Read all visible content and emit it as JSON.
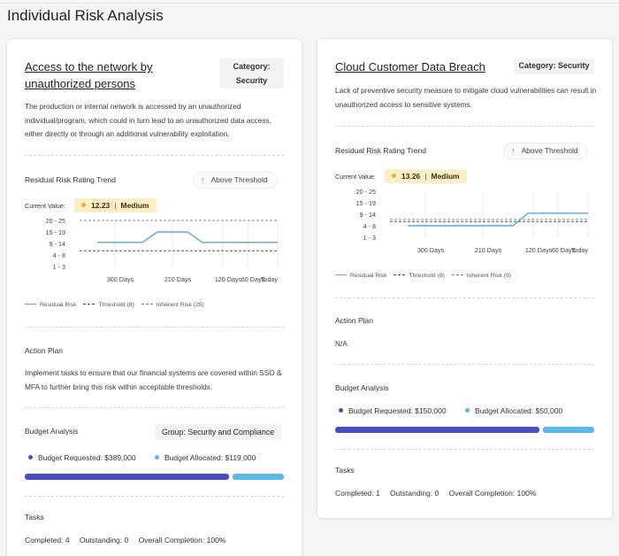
{
  "page": {
    "title": "Individual Risk Analysis"
  },
  "colors": {
    "residual_line": "#5aa7d8",
    "budget_requested": "#4a4fc2",
    "budget_allocated": "#5cb8ea",
    "current_pill": "#fcefc5",
    "threshold_arrow": "#c8553a"
  },
  "cards": [
    {
      "title": "Access to the network by unauthorized persons",
      "category_label": "Category:",
      "category_value": "Security",
      "description": "The production or internal network is accessed by an unauthorized individual/program, which could in turn lead to an unauthorized data access, either directly or through an additional vulnerability exploitation.",
      "trend_label": "Residual Risk Rating Trend",
      "threshold_badge": "Above Threshold",
      "current_label": "Current Value:",
      "current_score": "12.23",
      "current_level": "Medium",
      "chart_data": {
        "type": "line",
        "y_bands": [
          "20 - 25",
          "15 - 19",
          "9 - 14",
          "4 - 8",
          "1 - 3"
        ],
        "x_labels": [
          "300 Days",
          "210 Days",
          "120 Days",
          "60 Days",
          "Today"
        ],
        "residual_values": [
          12,
          12,
          12,
          12,
          17,
          17,
          17,
          12,
          12,
          12,
          12,
          12,
          12
        ],
        "threshold": 8,
        "inherent": 25,
        "legend": [
          "Residual Risk",
          "Threshold (8)",
          "Inherent Risk (25)"
        ]
      },
      "action_plan_label": "Action Plan",
      "action_plan_text": "Implement tasks to ensure that our financial systems are covered within SSO & MFA to further bring this risk within acceptable thresholds.",
      "budget_label": "Budget Analysis",
      "group_badge": "Group: Security and Compliance",
      "budget_requested": "Budget Requested: $389,000",
      "budget_allocated": "Budget Allocated: $119,000",
      "budget_requested_share": 0.8,
      "tasks_label": "Tasks",
      "tasks_completed": "Completed: 4",
      "tasks_outstanding": "Outstanding: 0",
      "tasks_overall": "Overall Completion: 100%"
    },
    {
      "title": "Cloud Customer Data Breach",
      "category_label": "Category:",
      "category_value": "Security",
      "description": "Lack of preventive security measure to mitigate cloud vulnerabilities can result in unauthorized access to sensitive systems.",
      "trend_label": "Residual Risk Rating Trend",
      "threshold_badge": "Above Threshold",
      "current_label": "Current Value:",
      "current_score": "13.26",
      "current_level": "Medium",
      "chart_data": {
        "type": "line",
        "y_bands": [
          "20 - 25",
          "15 - 19",
          "9 - 14",
          "4 - 8",
          "1 - 3"
        ],
        "x_labels": [
          "300 Days",
          "210 Days",
          "120 Days",
          "60 Days",
          "Today"
        ],
        "residual_values": [
          6,
          6,
          6,
          6,
          6,
          6,
          6,
          6,
          12,
          12,
          12,
          12,
          12
        ],
        "threshold": 8,
        "inherent": 9,
        "legend": [
          "Residual Risk",
          "Threshold (8)",
          "Inherent Risk (9)"
        ]
      },
      "action_plan_label": "Action Plan",
      "action_plan_text": "N/A",
      "budget_label": "Budget Analysis",
      "budget_requested": "Budget Requested: $150,000",
      "budget_allocated": "Budget Allocated: $50,000",
      "budget_requested_share": 0.8,
      "tasks_label": "Tasks",
      "tasks_completed": "Completed: 1",
      "tasks_outstanding": "Outstanding: 0",
      "tasks_overall": "Overall Completion: 100%"
    }
  ]
}
